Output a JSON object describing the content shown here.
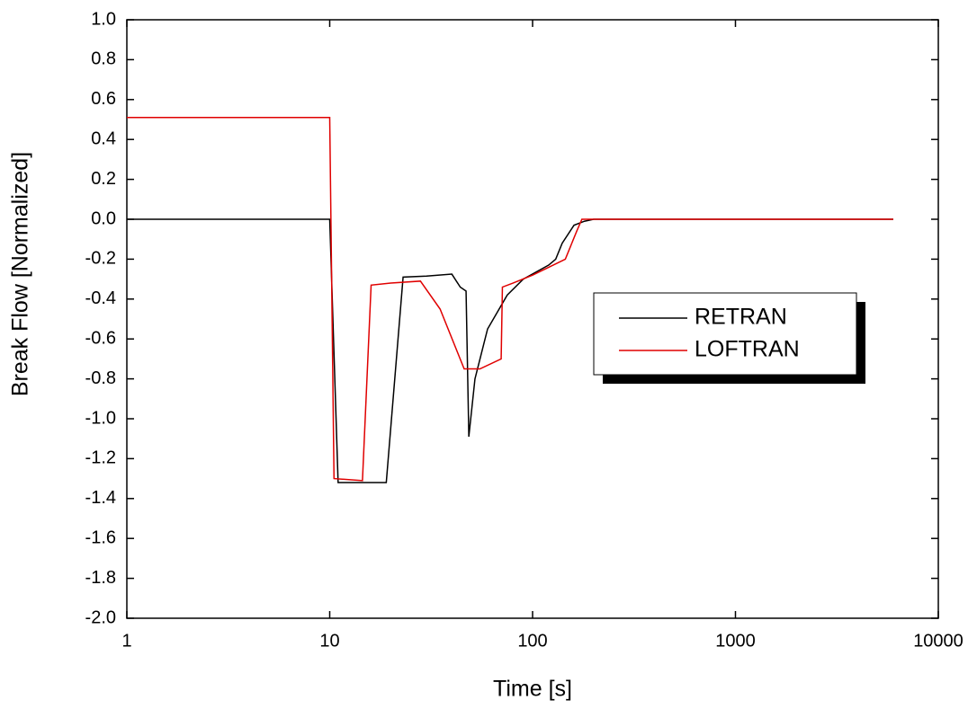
{
  "chart_data": {
    "type": "line",
    "xlabel": "Time [s]",
    "ylabel": "Break Flow [Normalized]",
    "xscale": "log",
    "legend": "right",
    "xlim": [
      1,
      10000
    ],
    "xticks": [
      1,
      10,
      100,
      1000,
      10000
    ],
    "ylim": [
      -2,
      1
    ],
    "yticks": [
      {
        "value": 1,
        "label": "1.0"
      },
      0.8,
      0.6,
      0.4,
      0.2,
      {
        "value": 0,
        "label": "0.0"
      },
      -0.2,
      -0.4,
      -0.6,
      -0.8,
      {
        "value": -1,
        "label": "-1.0"
      },
      -1.2,
      -1.4,
      -1.6,
      -1.8,
      {
        "value": -2,
        "label": "-2.0"
      }
    ],
    "series": [
      {
        "name": "RETRAN",
        "color": "#000000",
        "x": [
          1,
          10,
          11,
          19,
          23,
          30,
          40,
          44,
          47,
          48.5,
          52,
          60,
          75,
          90,
          120,
          130,
          140,
          160,
          180,
          200,
          6000
        ],
        "values": [
          0,
          0,
          -1.32,
          -1.32,
          -0.29,
          -0.285,
          -0.275,
          -0.34,
          -0.36,
          -1.09,
          -0.8,
          -0.55,
          -0.38,
          -0.3,
          -0.23,
          -0.2,
          -0.12,
          -0.03,
          -0.01,
          0,
          0
        ]
      },
      {
        "name": "LOFTRAN",
        "color": "#e00000",
        "x": [
          1,
          10,
          10.5,
          14.5,
          16,
          20,
          28,
          35,
          46,
          55,
          70,
          71,
          80,
          100,
          145,
          165,
          175,
          6000
        ],
        "values": [
          0.51,
          0.51,
          -1.3,
          -1.31,
          -0.33,
          -0.32,
          -0.31,
          -0.45,
          -0.75,
          -0.75,
          -0.7,
          -0.34,
          -0.32,
          -0.28,
          -0.2,
          -0.06,
          0,
          0
        ]
      }
    ]
  }
}
